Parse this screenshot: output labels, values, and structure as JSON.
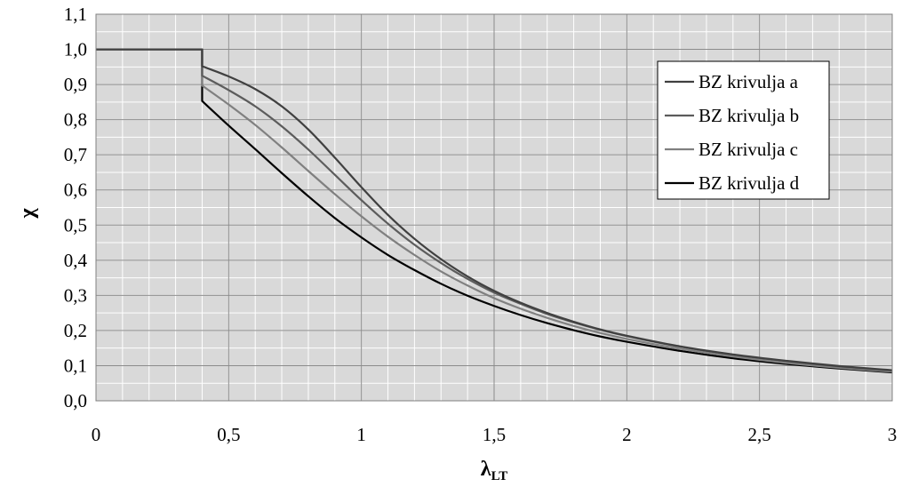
{
  "chart_data": {
    "type": "line",
    "title": "",
    "xlabel": "λ",
    "xlabel_sub": "LT",
    "ylabel": "χ",
    "xlim": [
      0,
      3
    ],
    "ylim": [
      0,
      1.1
    ],
    "x_major_step": 0.5,
    "y_major_step": 0.1,
    "x_minor_step": 0.1,
    "y_minor_step": 0.05,
    "x_tick_labels": [
      "0",
      "0,5",
      "1",
      "1,5",
      "2",
      "2,5",
      "3"
    ],
    "y_tick_labels": [
      "0,0",
      "0,1",
      "0,2",
      "0,3",
      "0,4",
      "0,5",
      "0,6",
      "0,7",
      "0,8",
      "0,9",
      "1,0",
      "1,1"
    ],
    "grid": true,
    "legend_position": "top-right",
    "plot_background": "#d9d9d9",
    "series": [
      {
        "name": "BZ krivulja a",
        "color": "#404040",
        "x": [
          0,
          0.4,
          0.4,
          0.5,
          0.6,
          0.7,
          0.8,
          0.9,
          1.0,
          1.1,
          1.2,
          1.3,
          1.4,
          1.5,
          1.6,
          1.7,
          1.8,
          1.9,
          2.0,
          2.2,
          2.4,
          2.6,
          2.8,
          3.0
        ],
        "y": [
          1.0,
          1.0,
          0.952,
          0.923,
          0.887,
          0.838,
          0.772,
          0.692,
          0.608,
          0.529,
          0.461,
          0.403,
          0.354,
          0.313,
          0.279,
          0.25,
          0.225,
          0.203,
          0.185,
          0.155,
          0.132,
          0.114,
          0.099,
          0.087
        ]
      },
      {
        "name": "BZ krivulja b",
        "color": "#5c5c5c",
        "x": [
          0,
          0.4,
          0.4,
          0.5,
          0.6,
          0.7,
          0.8,
          0.9,
          1.0,
          1.1,
          1.2,
          1.3,
          1.4,
          1.5,
          1.6,
          1.7,
          1.8,
          1.9,
          2.0,
          2.2,
          2.4,
          2.6,
          2.8,
          3.0
        ],
        "y": [
          1.0,
          1.0,
          0.925,
          0.884,
          0.838,
          0.781,
          0.715,
          0.643,
          0.571,
          0.504,
          0.444,
          0.392,
          0.347,
          0.308,
          0.276,
          0.247,
          0.223,
          0.202,
          0.184,
          0.154,
          0.131,
          0.113,
          0.098,
          0.086
        ]
      },
      {
        "name": "BZ krivulja c",
        "color": "#808080",
        "x": [
          0,
          0.4,
          0.4,
          0.5,
          0.6,
          0.7,
          0.8,
          0.9,
          1.0,
          1.1,
          1.2,
          1.3,
          1.4,
          1.5,
          1.6,
          1.7,
          1.8,
          1.9,
          2.0,
          2.2,
          2.4,
          2.6,
          2.8,
          3.0
        ],
        "y": [
          1.0,
          1.0,
          0.897,
          0.843,
          0.785,
          0.721,
          0.654,
          0.588,
          0.525,
          0.467,
          0.415,
          0.368,
          0.328,
          0.292,
          0.262,
          0.236,
          0.213,
          0.193,
          0.176,
          0.148,
          0.126,
          0.108,
          0.094,
          0.083
        ]
      },
      {
        "name": "BZ krivulja d",
        "color": "#000000",
        "x": [
          0,
          0.4,
          0.4,
          0.5,
          0.6,
          0.7,
          0.8,
          0.9,
          1.0,
          1.1,
          1.2,
          1.3,
          1.4,
          1.5,
          1.6,
          1.7,
          1.8,
          1.9,
          2.0,
          2.2,
          2.4,
          2.6,
          2.8,
          3.0
        ],
        "y": [
          1.0,
          1.0,
          0.853,
          0.783,
          0.716,
          0.648,
          0.582,
          0.52,
          0.465,
          0.415,
          0.372,
          0.333,
          0.299,
          0.27,
          0.244,
          0.221,
          0.201,
          0.183,
          0.168,
          0.142,
          0.121,
          0.105,
          0.092,
          0.081
        ]
      }
    ]
  }
}
